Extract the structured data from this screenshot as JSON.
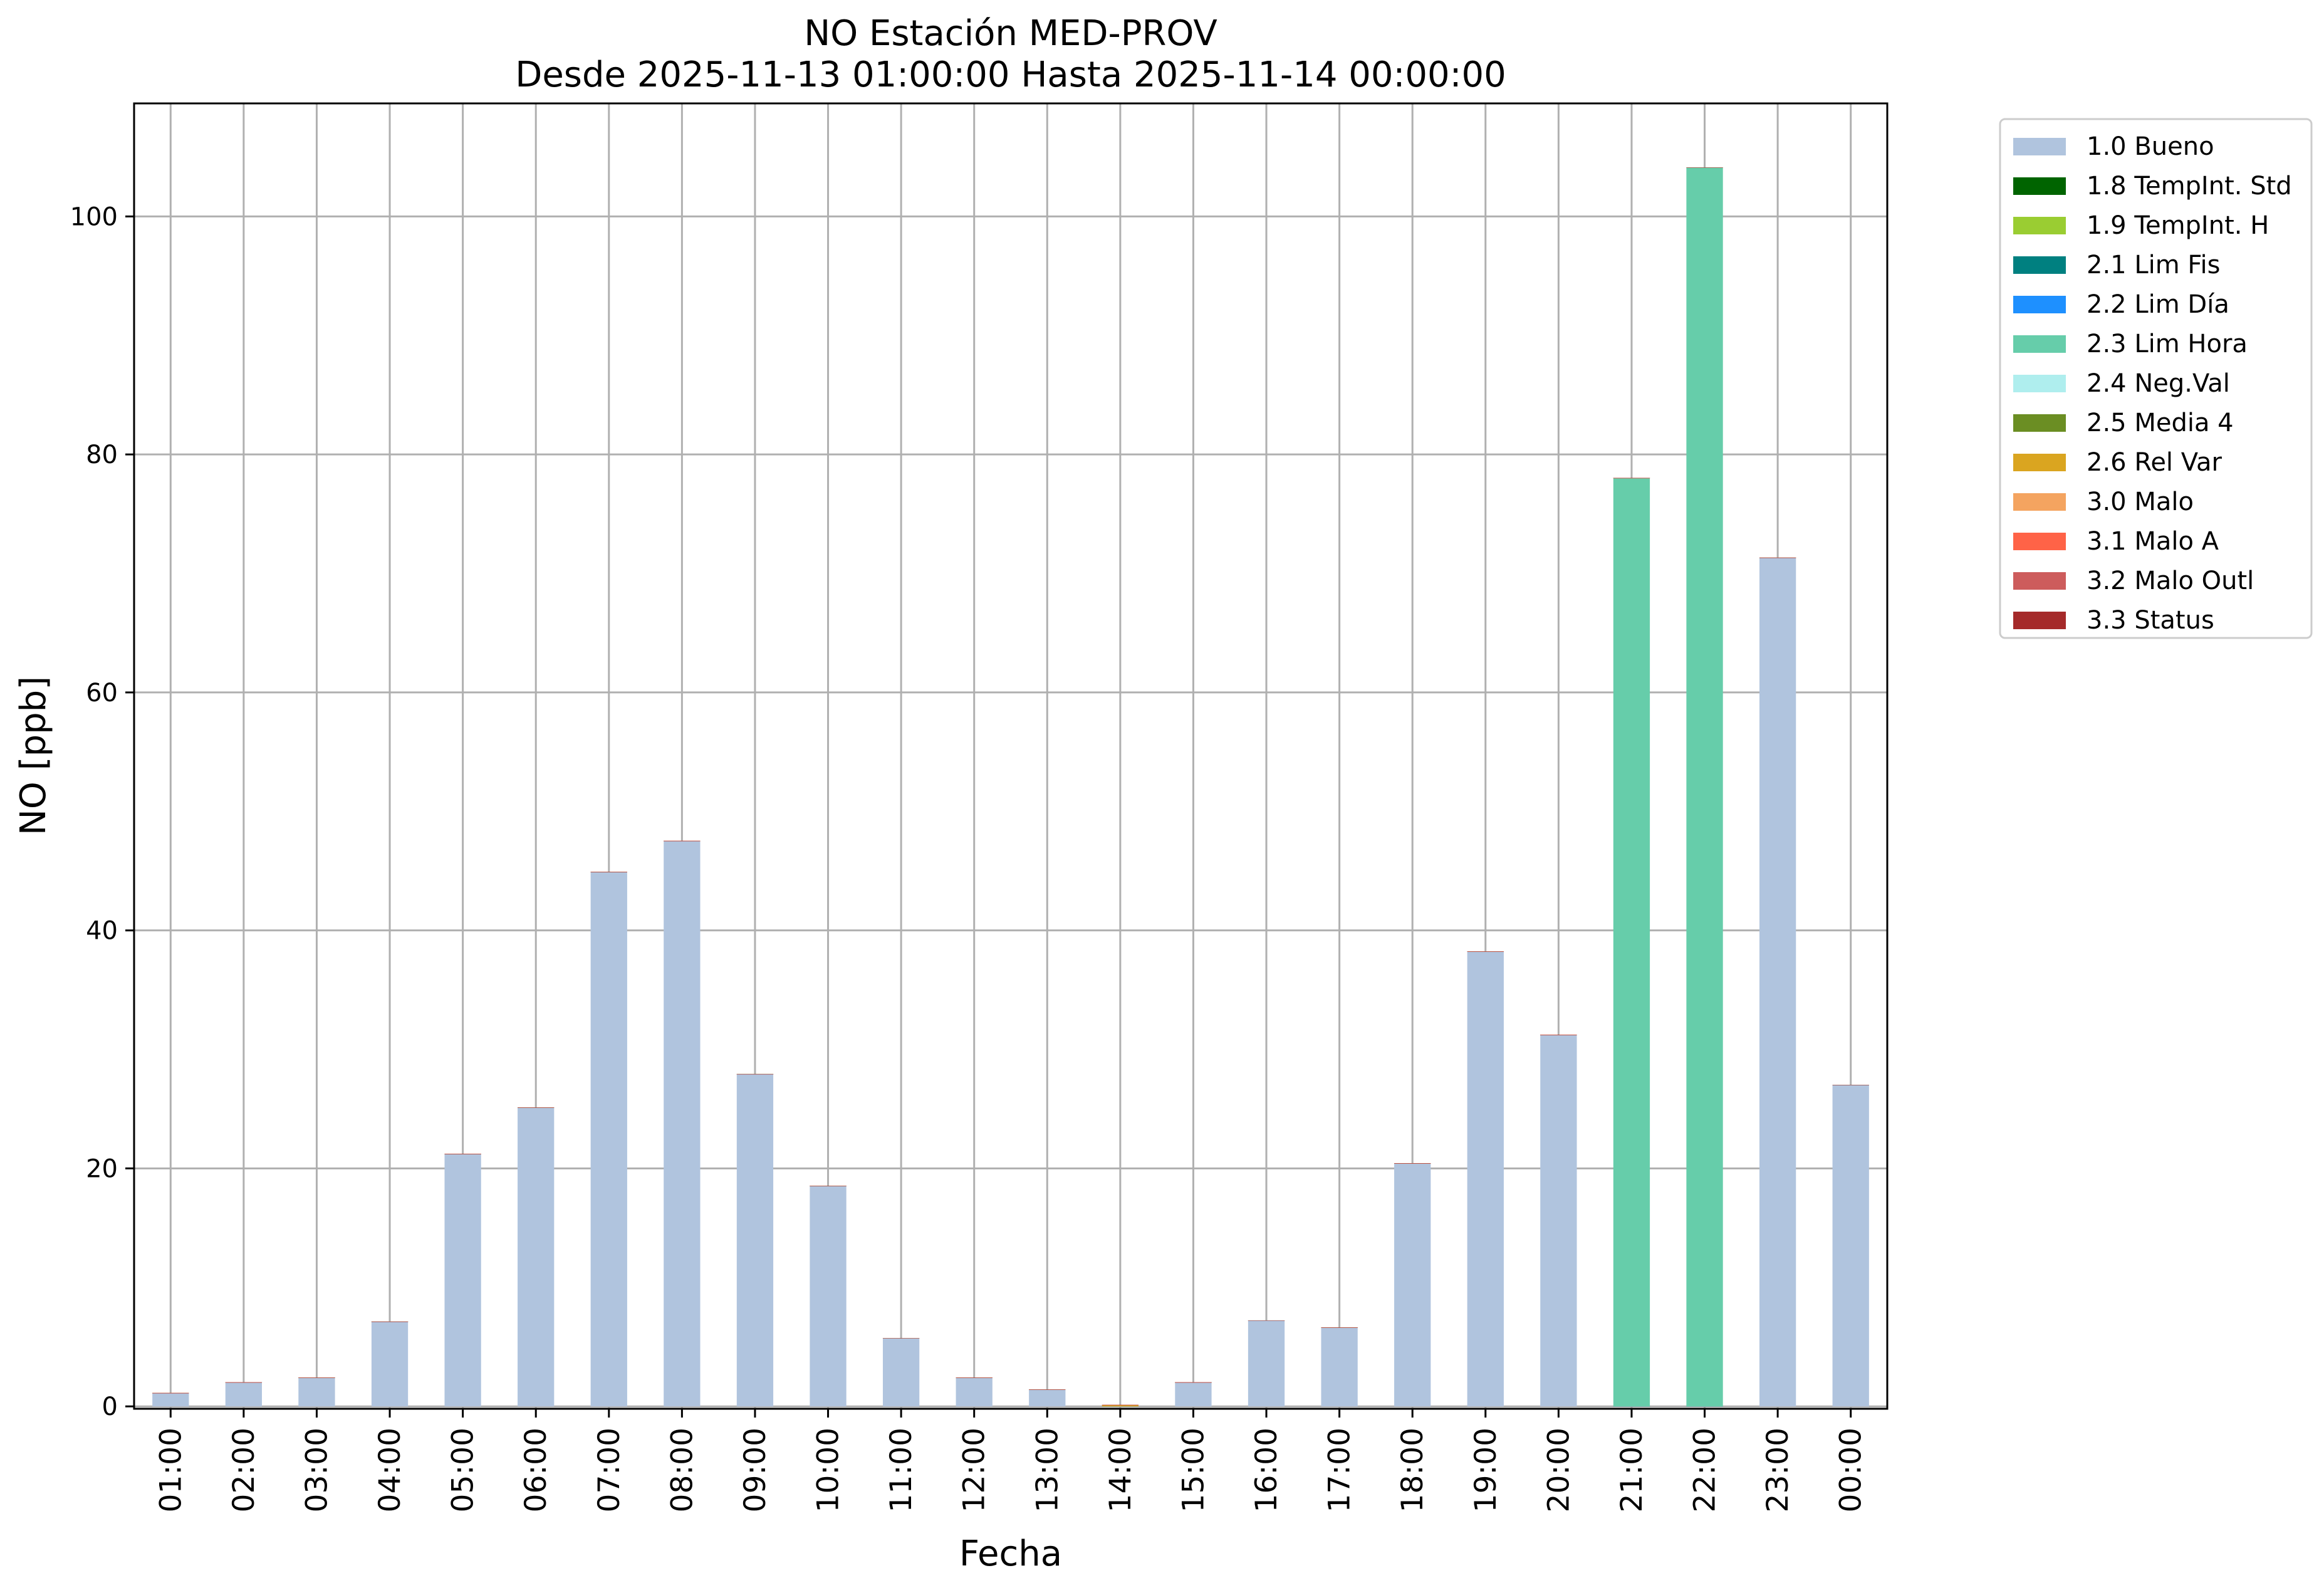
{
  "chart_data": {
    "type": "bar",
    "title": "NO Estación MED-PROV",
    "subtitle": "Desde 2025-11-13 01:00:00 Hasta 2025-11-14 00:00:00",
    "xlabel": "Fecha",
    "ylabel": "NO [ppb]",
    "ylim": [
      -0.2,
      109.5
    ],
    "yticks": [
      0,
      20,
      40,
      60,
      80,
      100
    ],
    "grid": true,
    "legend_position": "outside-top-right",
    "categories": [
      "01:00",
      "02:00",
      "03:00",
      "04:00",
      "05:00",
      "06:00",
      "07:00",
      "08:00",
      "09:00",
      "10:00",
      "11:00",
      "12:00",
      "13:00",
      "14:00",
      "15:00",
      "16:00",
      "17:00",
      "18:00",
      "19:00",
      "20:00",
      "21:00",
      "22:00",
      "23:00",
      "00:00"
    ],
    "series": [
      {
        "name": "1.0 Bueno",
        "color": "#b0c4de",
        "values": [
          1.1,
          2.0,
          2.4,
          7.1,
          21.2,
          25.1,
          44.9,
          47.5,
          27.9,
          18.5,
          5.7,
          2.4,
          1.4,
          0,
          2.0,
          7.2,
          6.6,
          20.4,
          38.2,
          31.2,
          0,
          0,
          71.3,
          27.0
        ]
      },
      {
        "name": "1.8 TempInt. Std",
        "color": "#006400",
        "values": [
          0,
          0,
          0,
          0,
          0,
          0,
          0,
          0,
          0,
          0,
          0,
          0,
          0,
          0,
          0,
          0,
          0,
          0,
          0,
          0,
          0,
          0,
          0,
          0
        ]
      },
      {
        "name": "1.9 TempInt. H",
        "color": "#9acd32",
        "values": [
          0,
          0,
          0,
          0,
          0,
          0,
          0,
          0,
          0,
          0,
          0,
          0,
          0,
          0,
          0,
          0,
          0,
          0,
          0,
          0,
          0,
          0,
          0,
          0
        ]
      },
      {
        "name": "2.1 Lim Fis",
        "color": "#008080",
        "values": [
          0,
          0,
          0,
          0,
          0,
          0,
          0,
          0,
          0,
          0,
          0,
          0,
          0,
          0,
          0,
          0,
          0,
          0,
          0,
          0,
          0,
          0,
          0,
          0
        ]
      },
      {
        "name": "2.2 Lim Día",
        "color": "#1e90ff",
        "values": [
          0,
          0,
          0,
          0,
          0,
          0,
          0,
          0,
          0,
          0,
          0,
          0,
          0,
          0,
          0,
          0,
          0,
          0,
          0,
          0,
          0,
          0,
          0,
          0
        ]
      },
      {
        "name": "2.3 Lim Hora",
        "color": "#66cdaa",
        "values": [
          0,
          0,
          0,
          0,
          0,
          0,
          0,
          0,
          0,
          0,
          0,
          0,
          0,
          0,
          0,
          0,
          0,
          0,
          0,
          0,
          78.0,
          104.1,
          0,
          0
        ]
      },
      {
        "name": "2.4 Neg.Val",
        "color": "#afeeee",
        "values": [
          0,
          0,
          0,
          0,
          0,
          0,
          0,
          0,
          0,
          0,
          0,
          0,
          0,
          0,
          0,
          0,
          0,
          0,
          0,
          0,
          0,
          0,
          0,
          0
        ]
      },
      {
        "name": "2.5 Media 4",
        "color": "#6b8e23",
        "values": [
          0,
          0,
          0,
          0,
          0,
          0,
          0,
          0,
          0,
          0,
          0,
          0,
          0,
          0,
          0,
          0,
          0,
          0,
          0,
          0,
          0,
          0,
          0,
          0
        ]
      },
      {
        "name": "2.6 Rel Var",
        "color": "#daa520",
        "values": [
          0,
          0,
          0,
          0,
          0,
          0,
          0,
          0,
          0,
          0,
          0,
          0,
          0,
          0.1,
          0,
          0,
          0,
          0,
          0,
          0,
          0,
          0,
          0,
          0
        ]
      },
      {
        "name": "3.0 Malo",
        "color": "#f4a460",
        "values": [
          0,
          0,
          0,
          0,
          0,
          0,
          0,
          0,
          0,
          0,
          0,
          0,
          0,
          0,
          0,
          0,
          0,
          0,
          0,
          0,
          0,
          0,
          0,
          0
        ]
      },
      {
        "name": "3.1 Malo A",
        "color": "#ff6347",
        "values": [
          0,
          0,
          0,
          0,
          0,
          0,
          0,
          0,
          0,
          0,
          0,
          0,
          0,
          0,
          0,
          0,
          0,
          0,
          0,
          0,
          0,
          0,
          0,
          0
        ]
      },
      {
        "name": "3.2 Malo Outl",
        "color": "#cd5c5c",
        "values": [
          0,
          0,
          0,
          0,
          0,
          0,
          0,
          0,
          0,
          0,
          0,
          0,
          0,
          0,
          0,
          0,
          0,
          0,
          0,
          0,
          0,
          0,
          0,
          0
        ]
      },
      {
        "name": "3.3 Status",
        "color": "#a52a2a",
        "values": [
          0,
          0,
          0,
          0,
          0,
          0,
          0,
          0,
          0,
          0,
          0,
          0,
          0,
          0,
          0,
          0,
          0,
          0,
          0,
          0,
          0,
          0,
          0,
          0
        ]
      }
    ]
  }
}
